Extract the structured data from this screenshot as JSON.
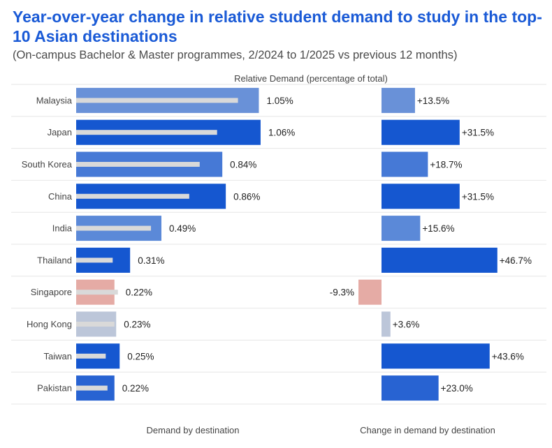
{
  "title": "Year-over-year change in relative student demand to study in the top-10 Asian destinations",
  "subtitle": "(On-campus Bachelor & Master programmes, 2/2024 to 1/2025 vs previous 12 months)",
  "chart_data": {
    "type": "bar",
    "categories": [
      "Malaysia",
      "Japan",
      "South Korea",
      "China",
      "India",
      "Thailand",
      "Singapore",
      "Hong Kong",
      "Taiwan",
      "Pakistan"
    ],
    "axis_label": "Relative Demand (percentage of total)",
    "left_panel": {
      "caption": "Demand by destination",
      "values": [
        1.05,
        1.06,
        0.84,
        0.86,
        0.49,
        0.31,
        0.22,
        0.23,
        0.25,
        0.22
      ],
      "labels": [
        "1.05%",
        "1.06%",
        "0.84%",
        "0.86%",
        "0.49%",
        "0.31%",
        "0.22%",
        "0.23%",
        "0.25%",
        "0.22%"
      ],
      "previous_values": [
        0.93,
        0.81,
        0.71,
        0.65,
        0.43,
        0.21,
        0.24,
        0.22,
        0.17,
        0.18
      ]
    },
    "right_panel": {
      "caption": "Change in demand by destination",
      "values": [
        13.5,
        31.5,
        18.7,
        31.5,
        15.6,
        46.7,
        -9.3,
        3.6,
        43.6,
        23.0
      ],
      "labels": [
        "+13.5%",
        "+31.5%",
        "+18.7%",
        "+31.5%",
        "+15.6%",
        "+46.7%",
        "-9.3%",
        "+3.6%",
        "+43.6%",
        "+23.0%"
      ]
    },
    "colors": [
      "#6991d8",
      "#1557d0",
      "#4679d6",
      "#1557d0",
      "#5b89d8",
      "#1557d0",
      "#e5aba5",
      "#bcc6d9",
      "#1557d0",
      "#2863d2"
    ],
    "prev_bar_color": "#d9d9d9"
  }
}
